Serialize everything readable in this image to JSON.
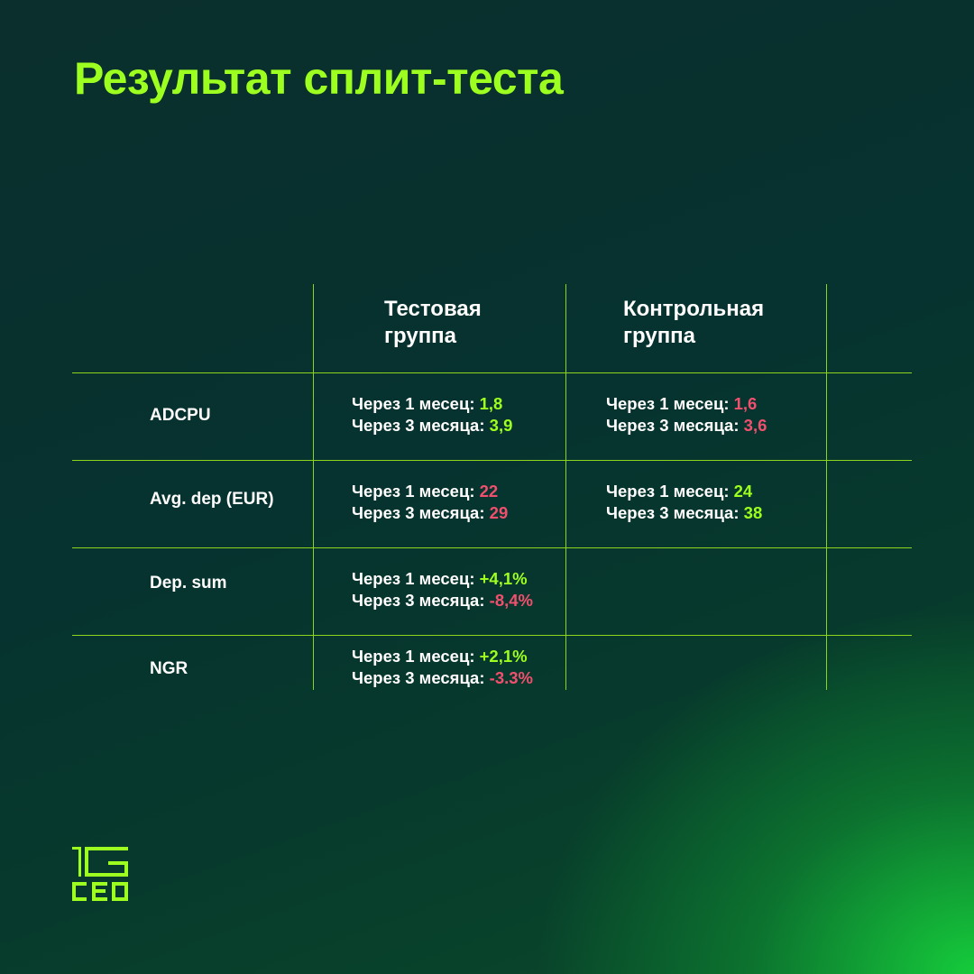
{
  "title": "Результат сплит-теста",
  "columns": {
    "test": "Тестовая группа",
    "control": "Контрольная группа"
  },
  "colors": {
    "positive": "#9dff1f",
    "negative": "#f0506e",
    "accent": "#9dff1f"
  },
  "rows": [
    {
      "label": "ADCPU",
      "test": {
        "line1_label": "Через 1 месец: ",
        "line1_value": "1,8",
        "line1_tone": "positive",
        "line2_label": "Через 3 месяца: ",
        "line2_value": "3,9",
        "line2_tone": "positive"
      },
      "control": {
        "line1_label": "Через 1 месец: ",
        "line1_value": "1,6",
        "line1_tone": "negative",
        "line2_label": "Через 3 месяца: ",
        "line2_value": "3,6",
        "line2_tone": "negative"
      }
    },
    {
      "label": "Avg. dep (EUR)",
      "test": {
        "line1_label": "Через 1 месец: ",
        "line1_value": "22",
        "line1_tone": "negative",
        "line2_label": "Через 3 месяца: ",
        "line2_value": "29",
        "line2_tone": "negative"
      },
      "control": {
        "line1_label": "Через 1 месец: ",
        "line1_value": "24",
        "line1_tone": "positive",
        "line2_label": "Через 3 месяца: ",
        "line2_value": "38",
        "line2_tone": "positive"
      }
    },
    {
      "label": "Dep. sum",
      "test": {
        "line1_label": "Через 1 месец: ",
        "line1_value": "+4,1%",
        "line1_tone": "positive",
        "line2_label": "Через 3 месяца: ",
        "line2_value": "-8,4%",
        "line2_tone": "negative"
      }
    },
    {
      "label": "NGR",
      "test": {
        "line1_label": "Через 1 месец: ",
        "line1_value": "+2,1%",
        "line1_tone": "positive",
        "line2_label": "Через 3 месяца: ",
        "line2_value": "-3.3%",
        "line2_tone": "negative"
      }
    }
  ],
  "logo": {
    "top": "1G",
    "bottom": "CEO",
    "icon": "1g-ceo-logo"
  }
}
